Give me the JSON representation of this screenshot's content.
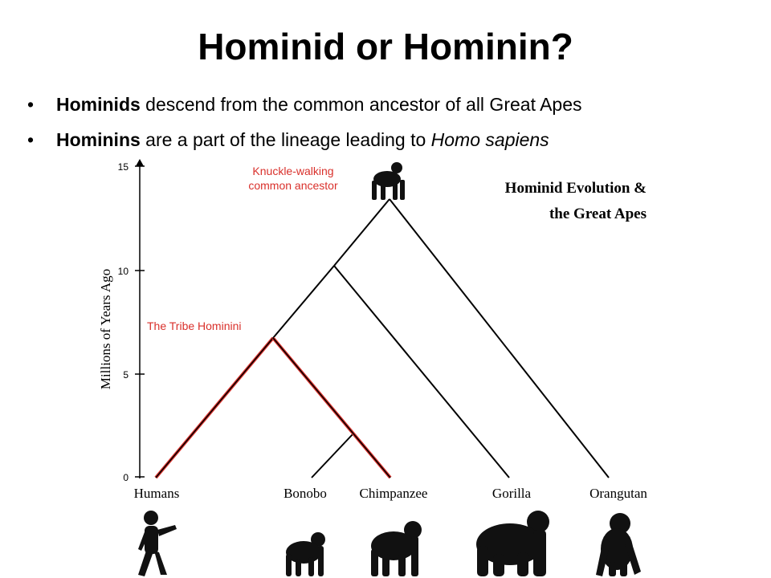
{
  "slide": {
    "title": "Hominid or Hominin?",
    "bullets": [
      {
        "bold": "Hominids",
        "text": " descend from the common ancestor of all Great Apes",
        "italic": ""
      },
      {
        "bold": "Hominins",
        "text": " are a part of the lineage leading to ",
        "italic": "Homo sapiens"
      }
    ]
  },
  "diagram": {
    "title_line1": "Hominid Evolution &",
    "title_line2": "the Great Apes",
    "axis_label": "Millions of Years Ago",
    "axis_ticks": [
      "15",
      "10",
      "5",
      "0"
    ],
    "ancestor_label_line1": "Knuckle-walking",
    "ancestor_label_line2": "common ancestor",
    "tribe_label": "The Tribe Hominini",
    "species": [
      "Humans",
      "Bonobo",
      "Chimpanzee",
      "Gorilla",
      "Orangutan"
    ],
    "colors": {
      "highlight": "#d9302b",
      "line": "#000000"
    },
    "icons": [
      "ancestor-ape-silhouette-icon",
      "human-silhouette-icon",
      "bonobo-silhouette-icon",
      "chimpanzee-silhouette-icon",
      "gorilla-silhouette-icon",
      "orangutan-silhouette-icon"
    ]
  }
}
